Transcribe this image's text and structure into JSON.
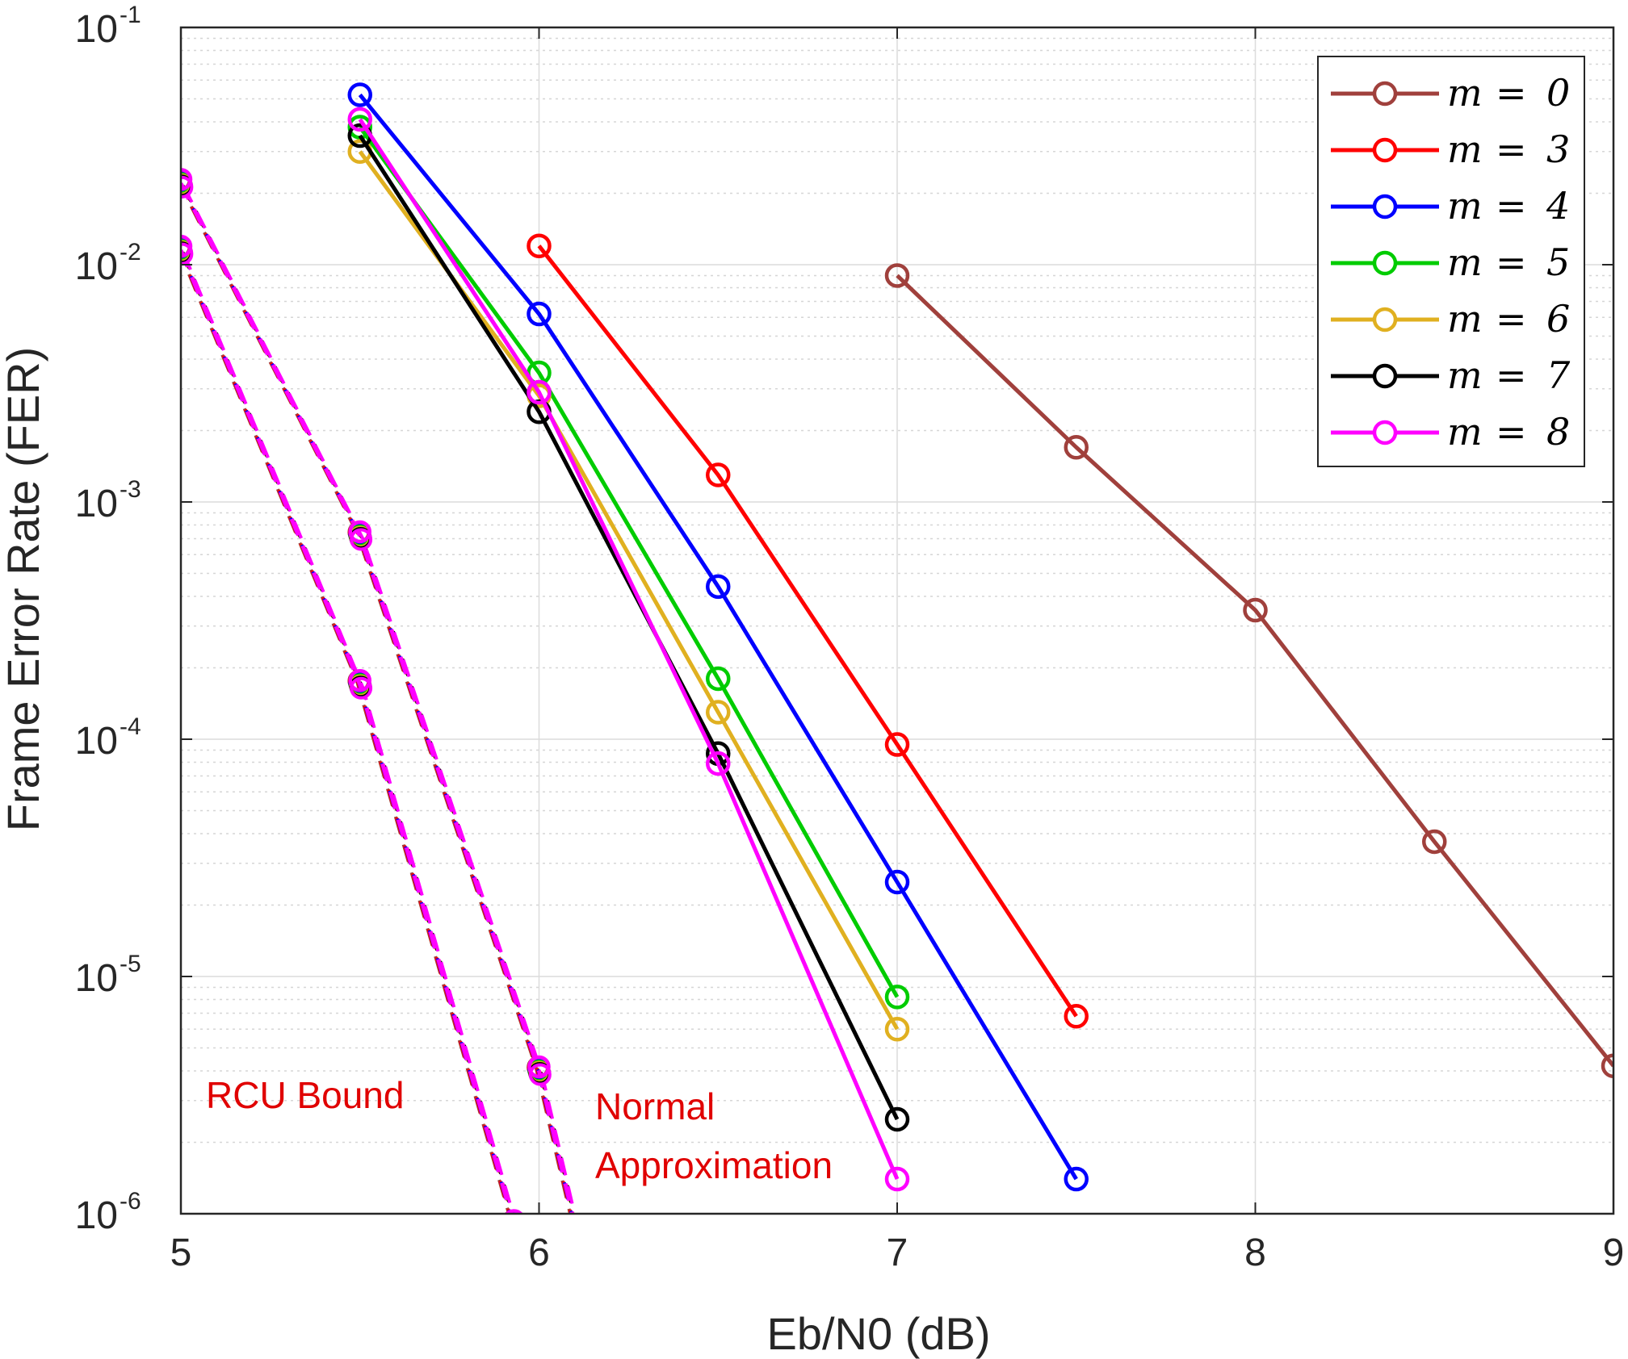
{
  "chart_data": {
    "type": "line",
    "xlabel": "Eb/N0 (dB)",
    "ylabel": "Frame Error Rate (FER)",
    "xlim": [
      5,
      9
    ],
    "ylim": [
      1e-06,
      0.1
    ],
    "yscale": "log",
    "grid": "on (major and minor)",
    "legend_position": "top-right",
    "x_ticks": [
      "5",
      "6",
      "7",
      "8",
      "9"
    ],
    "y_ticks": [
      {
        "base": "10",
        "exp": "-1",
        "value": 0.1
      },
      {
        "base": "10",
        "exp": "-2",
        "value": 0.01
      },
      {
        "base": "10",
        "exp": "-3",
        "value": 0.001
      },
      {
        "base": "10",
        "exp": "-4",
        "value": 0.0001
      },
      {
        "base": "10",
        "exp": "-5",
        "value": 1e-05
      },
      {
        "base": "10",
        "exp": "-6",
        "value": 1e-06
      }
    ],
    "series": [
      {
        "name": "m = 0",
        "legend": {
          "var": "m",
          "eq": "=",
          "num": "0"
        },
        "color": "#a0403c",
        "x": [
          7,
          7.5,
          8,
          8.5,
          9
        ],
        "y": [
          0.009,
          0.0017,
          0.00035,
          3.7e-05,
          4.2e-06
        ]
      },
      {
        "name": "m = 3",
        "legend": {
          "var": "m",
          "eq": "=",
          "num": "3"
        },
        "color": "#ff0000",
        "x": [
          6,
          6.5,
          7,
          7.5
        ],
        "y": [
          0.012,
          0.0013,
          9.5e-05,
          6.8e-06
        ]
      },
      {
        "name": "m = 4",
        "legend": {
          "var": "m",
          "eq": "=",
          "num": "4"
        },
        "color": "#0000ff",
        "x": [
          5.5,
          6,
          6.5,
          7,
          7.5
        ],
        "y": [
          0.052,
          0.0062,
          0.00044,
          2.5e-05,
          1.4e-06
        ]
      },
      {
        "name": "m = 5",
        "legend": {
          "var": "m",
          "eq": "=",
          "num": "5"
        },
        "color": "#00cc00",
        "x": [
          5.5,
          6,
          6.5,
          7
        ],
        "y": [
          0.038,
          0.0035,
          0.00018,
          8.2e-06
        ]
      },
      {
        "name": "m = 6",
        "legend": {
          "var": "m",
          "eq": "=",
          "num": "6"
        },
        "color": "#e0b020",
        "x": [
          5.5,
          6,
          6.5,
          7
        ],
        "y": [
          0.03,
          0.0028,
          0.00013,
          6e-06
        ]
      },
      {
        "name": "m = 7",
        "legend": {
          "var": "m",
          "eq": "=",
          "num": "7"
        },
        "color": "#000000",
        "x": [
          5.5,
          6,
          6.5,
          7
        ],
        "y": [
          0.035,
          0.0024,
          8.7e-05,
          2.5e-06
        ]
      },
      {
        "name": "m = 8",
        "legend": {
          "var": "m",
          "eq": "=",
          "num": "8"
        },
        "color": "#ff00ff",
        "x": [
          5.5,
          6,
          6.5,
          7
        ],
        "y": [
          0.041,
          0.0029,
          7.9e-05,
          1.4e-06
        ]
      }
    ],
    "bounds": [
      {
        "label": "Normal Approximation",
        "color": "#ff00ff",
        "dashed": true,
        "x": [
          5,
          5.5,
          6,
          6.1
        ],
        "y": [
          0.022,
          0.00072,
          4e-06,
          9e-07
        ]
      },
      {
        "label": "RCU Bound",
        "color": "#ff00ff",
        "dashed": true,
        "x": [
          5,
          5.5,
          5.93
        ],
        "y": [
          0.0115,
          0.00017,
          9e-07
        ]
      }
    ],
    "annotations": [
      {
        "lines": [
          "RCU Bound"
        ],
        "color": "#e00000"
      },
      {
        "lines": [
          "Normal",
          "Approximation"
        ],
        "color": "#e00000"
      }
    ]
  }
}
